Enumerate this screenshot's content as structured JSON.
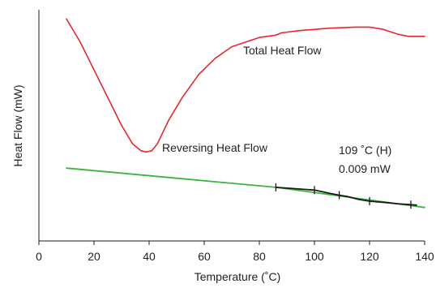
{
  "chart_data": {
    "type": "line",
    "xlabel": "Temperature (˚C)",
    "ylabel": "Heat Flow (mW)",
    "xlim": [
      0,
      140
    ],
    "x_ticks": [
      0,
      20,
      40,
      60,
      80,
      100,
      120,
      140
    ],
    "grid": false,
    "series": [
      {
        "name": "Total Heat Flow",
        "color": "#e8262e",
        "points": [
          [
            10,
            0.96
          ],
          [
            15,
            0.86
          ],
          [
            20,
            0.74
          ],
          [
            25,
            0.62
          ],
          [
            30,
            0.5
          ],
          [
            34,
            0.42
          ],
          [
            37,
            0.39
          ],
          [
            39,
            0.385
          ],
          [
            41,
            0.39
          ],
          [
            43,
            0.42
          ],
          [
            47,
            0.52
          ],
          [
            52,
            0.62
          ],
          [
            58,
            0.72
          ],
          [
            64,
            0.79
          ],
          [
            70,
            0.84
          ],
          [
            75,
            0.86
          ],
          [
            80,
            0.88
          ],
          [
            86,
            0.89
          ],
          [
            88,
            0.9
          ],
          [
            95,
            0.91
          ],
          [
            105,
            0.92
          ],
          [
            115,
            0.925
          ],
          [
            120,
            0.925
          ],
          [
            125,
            0.915
          ],
          [
            130,
            0.895
          ],
          [
            134,
            0.885
          ],
          [
            137,
            0.885
          ],
          [
            140,
            0.885
          ]
        ]
      },
      {
        "name": "Reversing Heat Flow",
        "color": "#3cb43c",
        "points": [
          [
            10,
            0.315
          ],
          [
            86,
            0.232
          ],
          [
            140,
            0.145
          ]
        ]
      },
      {
        "name": "",
        "color": "#1a1a1a",
        "points": [
          [
            86,
            0.232
          ],
          [
            100,
            0.22
          ],
          [
            106,
            0.205
          ],
          [
            109,
            0.198
          ],
          [
            112,
            0.192
          ],
          [
            116,
            0.18
          ],
          [
            120,
            0.172
          ],
          [
            126,
            0.166
          ],
          [
            130,
            0.161
          ],
          [
            135,
            0.157
          ],
          [
            137,
            0.155
          ]
        ]
      }
    ],
    "markers": [
      {
        "x": 86,
        "y": 0.232
      },
      {
        "x": 100,
        "y": 0.22
      },
      {
        "x": 109,
        "y": 0.198
      },
      {
        "x": 120,
        "y": 0.172
      },
      {
        "x": 135,
        "y": 0.157
      }
    ],
    "series_labels": [
      "Total Heat Flow",
      "Reversing Heat Flow"
    ],
    "annotations": [
      "109 ˚C (H)",
      "0.009 mW"
    ]
  }
}
